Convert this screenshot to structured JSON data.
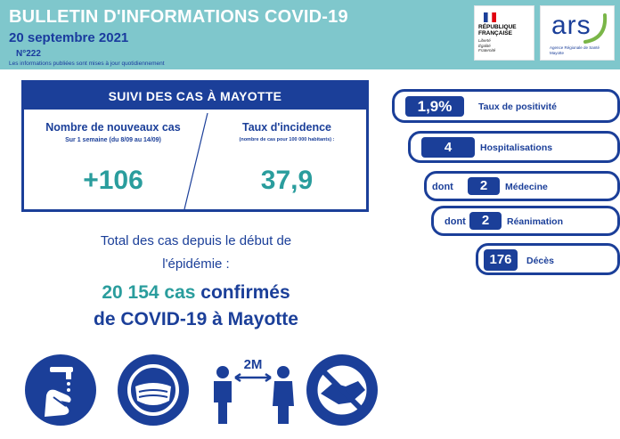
{
  "header": {
    "title": "BULLETIN D'INFORMATIONS COVID-19",
    "date": "20 septembre 2021",
    "number": "N°222",
    "note": "Les informations publiées sont mises à jour quotidiennement"
  },
  "logos": {
    "republique": [
      "RÉPUBLIQUE",
      "FRANÇAISE"
    ],
    "motto": [
      "Liberté",
      "Égalité",
      "Fraternité"
    ],
    "ars": "ars",
    "ars_sub": [
      "Agence Régionale de Santé",
      "Mayotte"
    ]
  },
  "stats": {
    "header": "SUIVI DES CAS À MAYOTTE",
    "new_cases": {
      "label": "Nombre de nouveaux cas",
      "sub": "Sur 1 semaine (du 8/09 au 14/09)",
      "value": "+106"
    },
    "incidence": {
      "label": "Taux d'incidence",
      "sub": "(nombre de cas pour 100 000 habitants) :",
      "value": "37,9"
    }
  },
  "totals": {
    "line1": "Total des cas depuis le début de",
    "line2": "l'épidémie :",
    "count": "20 154 cas",
    "confirmed": "confirmés",
    "line4": "de COVID-19 à Mayotte"
  },
  "indicators": [
    {
      "prefix": "",
      "value": "1,9%",
      "label": "Taux de positivité"
    },
    {
      "prefix": "",
      "value": "4",
      "label": "Hospitalisations"
    },
    {
      "prefix": "dont",
      "value": "2",
      "label": "Médecine"
    },
    {
      "prefix": "dont",
      "value": "2",
      "label": "Réanimation"
    },
    {
      "prefix": "",
      "value": "176",
      "label": "Décès"
    }
  ],
  "icons": {
    "distance": "2M"
  },
  "colors": {
    "header_bg": "#7fc7cc",
    "primary": "#1b3f99",
    "accent": "#2a9d9d"
  }
}
